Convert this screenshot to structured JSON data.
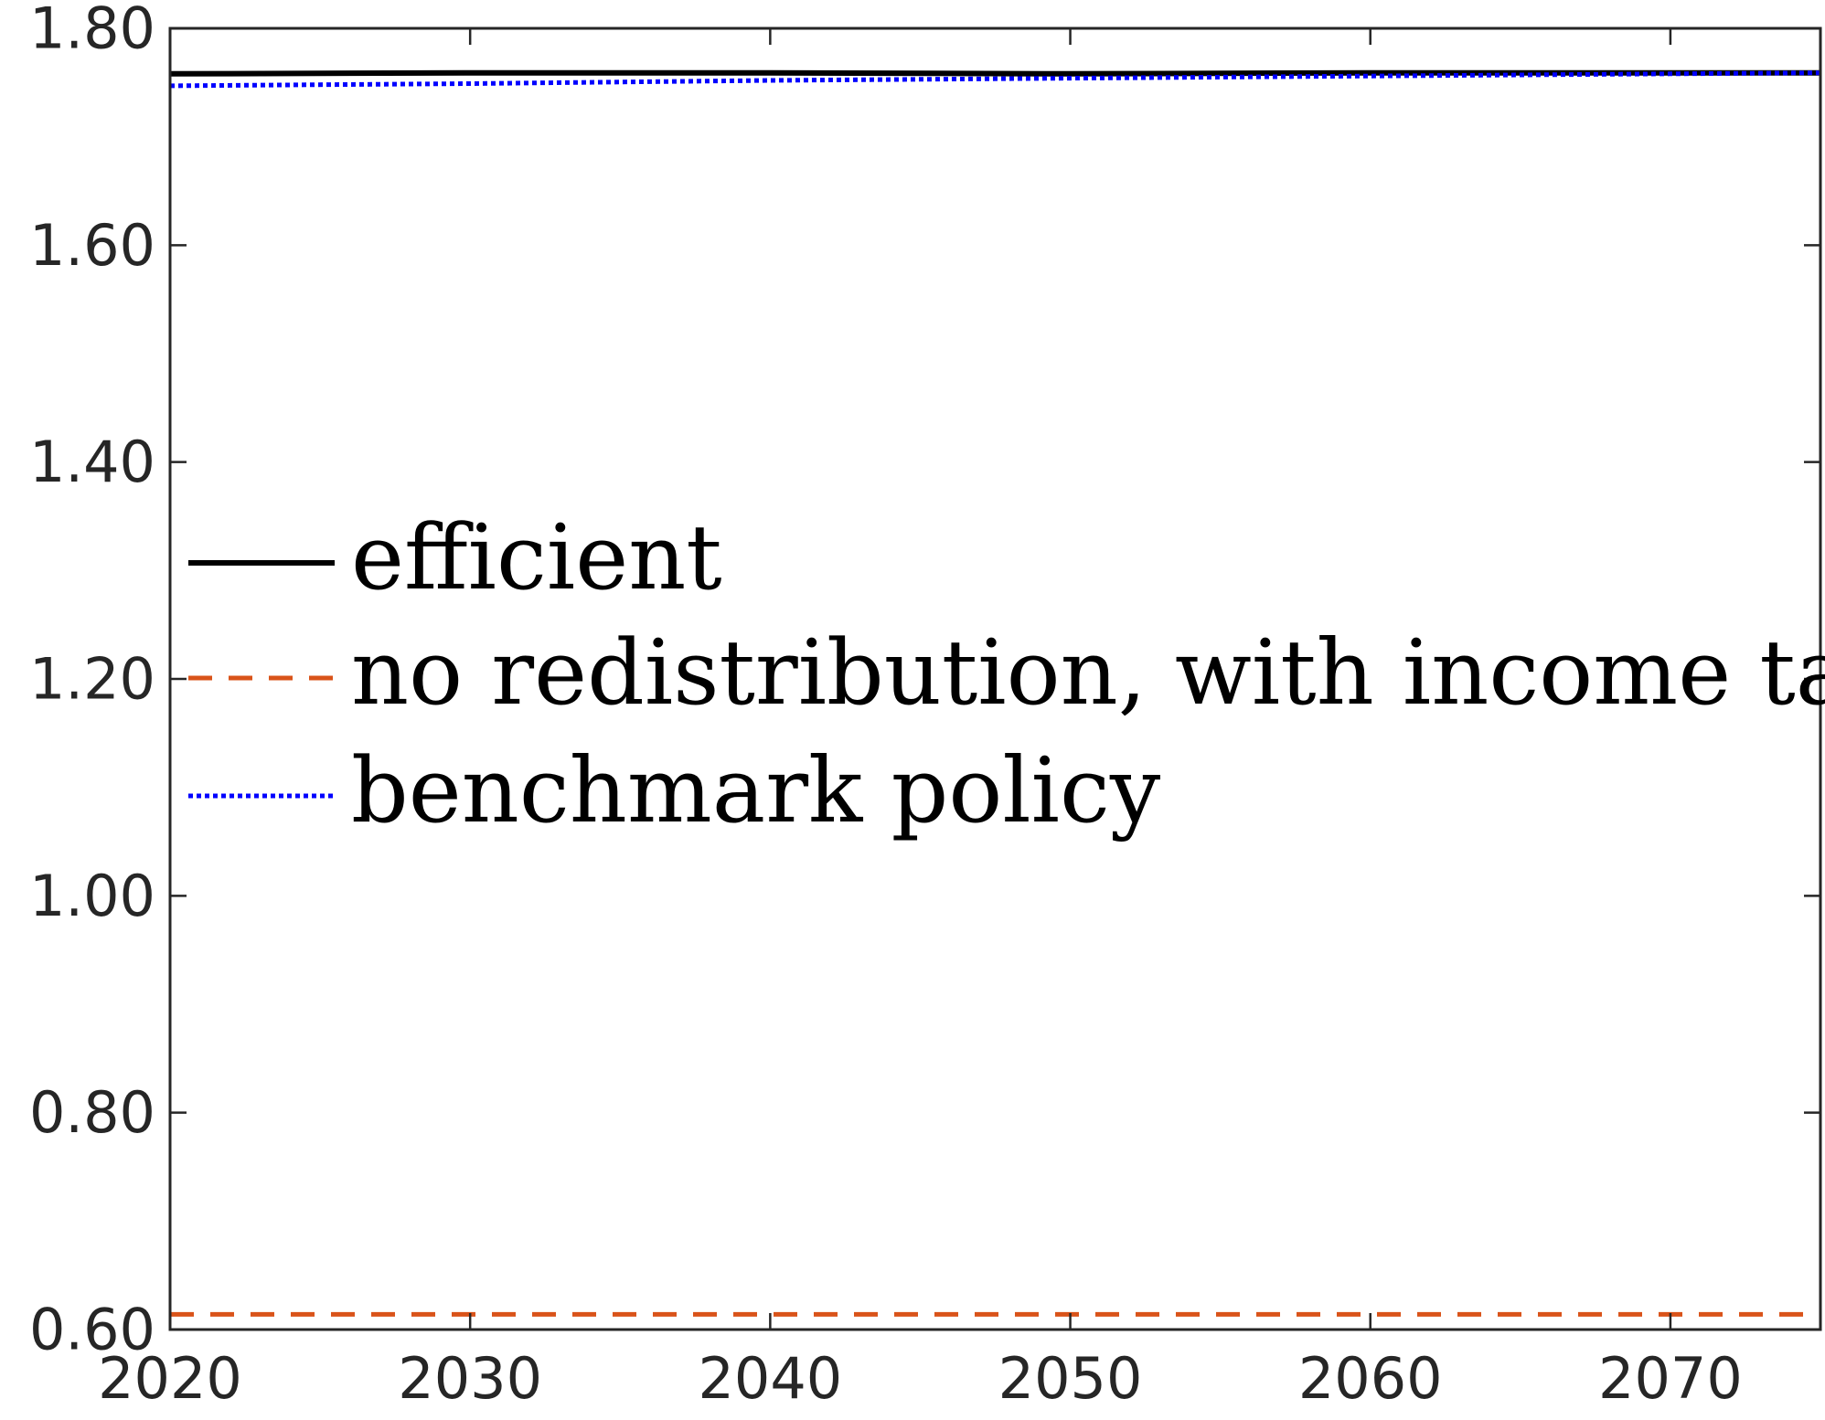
{
  "chart_data": {
    "type": "line",
    "title": "",
    "xlabel": "",
    "ylabel": "",
    "xlim": [
      2020,
      2075
    ],
    "ylim": [
      0.6,
      1.8
    ],
    "xticks": [
      2020,
      2030,
      2040,
      2050,
      2060,
      2070
    ],
    "xtick_labels": [
      "2020",
      "2030",
      "2040",
      "2050",
      "2060",
      "2070"
    ],
    "yticks": [
      0.6,
      0.8,
      1.0,
      1.2,
      1.4,
      1.6,
      1.8
    ],
    "ytick_labels": [
      "0.60",
      "0.80",
      "1.00",
      "1.20",
      "1.40",
      "1.60",
      "1.80"
    ],
    "grid": false,
    "legend_position": "center-left",
    "series": [
      {
        "name": "efficient",
        "color": "#000000",
        "style": "solid",
        "x": [
          2020,
          2030,
          2040,
          2050,
          2060,
          2070,
          2075
        ],
        "y": [
          1.758,
          1.759,
          1.759,
          1.758,
          1.759,
          1.759,
          1.759
        ]
      },
      {
        "name": "no redistribution, with income tax",
        "color": "#D95319",
        "style": "dashed",
        "x": [
          2020,
          2030,
          2040,
          2050,
          2060,
          2070,
          2075
        ],
        "y": [
          0.614,
          0.614,
          0.614,
          0.614,
          0.614,
          0.614,
          0.614
        ]
      },
      {
        "name": "benchmark policy",
        "color": "#0000FF",
        "style": "dotted",
        "x": [
          2020,
          2030,
          2040,
          2050,
          2060,
          2070,
          2075
        ],
        "y": [
          1.747,
          1.749,
          1.752,
          1.754,
          1.756,
          1.758,
          1.759
        ]
      }
    ]
  }
}
